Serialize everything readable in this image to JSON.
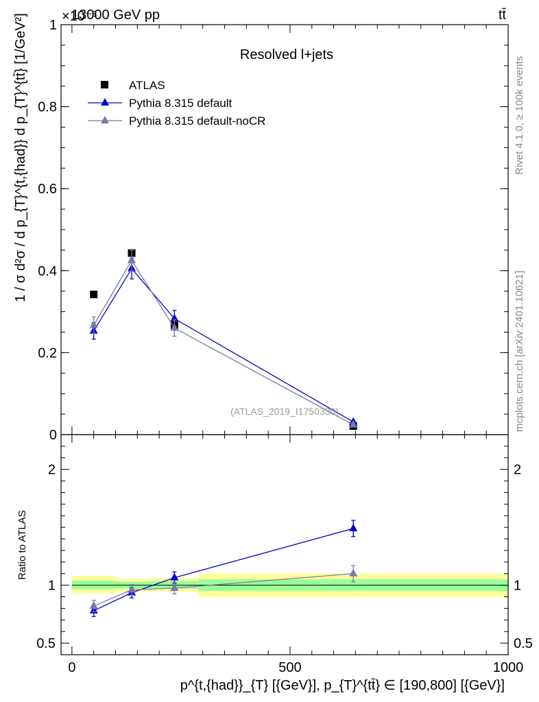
{
  "header": {
    "beam_label": "13000 GeV pp",
    "exponent_label": "×10⁻³",
    "process_label": "tt̄"
  },
  "side": {
    "rivet": "Rivet 4.1.0, ≥ 100k events",
    "mcplots": "mcplots.cern.ch [arXiv:2401.10621]"
  },
  "chart_data": [
    {
      "type": "scatter",
      "title": "Resolved l+jets",
      "watermark": "(ATLAS_2019_I1750330)",
      "ylabel": "1 / σ d²σ / d p_{T}^{t,{had}} d p_{T}^{tt̄} [1/GeV²]",
      "xlim": [
        -25,
        1000
      ],
      "ylim": [
        0,
        1.0
      ],
      "yticks": [
        {
          "v": 0,
          "label": "0"
        },
        {
          "v": 0.2,
          "label": "0.2"
        },
        {
          "v": 0.4,
          "label": "0.4"
        },
        {
          "v": 0.6,
          "label": "0.6"
        },
        {
          "v": 0.8,
          "label": "0.8"
        },
        {
          "v": 1.0,
          "label": "1"
        }
      ],
      "legend": [
        "ATLAS",
        "Pythia 8.315 default",
        "Pythia 8.315 default-noCR"
      ],
      "series": [
        {
          "name": "ATLAS",
          "color": "#000000",
          "marker": "square",
          "points": [
            {
              "x": 50,
              "y": 0.342,
              "err": 0.0
            },
            {
              "x": 137,
              "y": 0.443,
              "err": 0.0
            },
            {
              "x": 235,
              "y": 0.267,
              "err": 0.0
            },
            {
              "x": 645,
              "y": 0.021,
              "err": 0.0
            }
          ]
        },
        {
          "name": "Pythia 8.315 default",
          "color": "#0000cc",
          "marker": "triangle",
          "points": [
            {
              "x": 50,
              "y": 0.253,
              "err": 0.02
            },
            {
              "x": 137,
              "y": 0.405,
              "err": 0.025
            },
            {
              "x": 235,
              "y": 0.283,
              "err": 0.02
            },
            {
              "x": 645,
              "y": 0.031,
              "err": 0.002
            }
          ]
        },
        {
          "name": "Pythia 8.315 default-noCR",
          "color": "#7777aa",
          "marker": "triangle",
          "points": [
            {
              "x": 50,
              "y": 0.267,
              "err": 0.02
            },
            {
              "x": 137,
              "y": 0.425,
              "err": 0.025
            },
            {
              "x": 235,
              "y": 0.26,
              "err": 0.02
            },
            {
              "x": 645,
              "y": 0.024,
              "err": 0.002
            }
          ]
        }
      ]
    },
    {
      "type": "scatter",
      "ylabel": "Ratio to ATLAS",
      "xlabel": "p^{t,{had}}_{T} [{GeV}], p_{T}^{tt̄} ∈ [190,800] [{GeV}]",
      "xlim": [
        -25,
        1000
      ],
      "ylim": [
        0.4,
        2.3
      ],
      "xticks": [
        {
          "v": 0,
          "label": "0"
        },
        {
          "v": 500,
          "label": "500"
        },
        {
          "v": 1000,
          "label": "1000"
        }
      ],
      "yticks": [
        {
          "v": 0.5,
          "label": "0.5"
        },
        {
          "v": 1,
          "label": "1"
        },
        {
          "v": 2,
          "label": "2"
        }
      ],
      "bands": [
        {
          "x0": 0,
          "x1": 100,
          "yellow": [
            0.93,
            1.08
          ],
          "green": [
            0.965,
            1.04
          ]
        },
        {
          "x0": 100,
          "x1": 175,
          "yellow": [
            0.945,
            1.055
          ],
          "green": [
            0.97,
            1.03
          ]
        },
        {
          "x0": 175,
          "x1": 290,
          "yellow": [
            0.945,
            1.06
          ],
          "green": [
            0.97,
            1.035
          ]
        },
        {
          "x0": 290,
          "x1": 1000,
          "yellow": [
            0.9,
            1.1
          ],
          "green": [
            0.95,
            1.05
          ]
        }
      ],
      "series": [
        {
          "name": "Pythia 8.315 default",
          "color": "#0000cc",
          "points": [
            {
              "x": 50,
              "y": 0.78,
              "err": 0.05
            },
            {
              "x": 137,
              "y": 0.935,
              "err": 0.045
            },
            {
              "x": 235,
              "y": 1.065,
              "err": 0.05
            },
            {
              "x": 645,
              "y": 1.49,
              "err": 0.07
            }
          ]
        },
        {
          "name": "Pythia 8.315 default-noCR",
          "color": "#7777aa",
          "points": [
            {
              "x": 50,
              "y": 0.82,
              "err": 0.05
            },
            {
              "x": 137,
              "y": 0.96,
              "err": 0.045
            },
            {
              "x": 235,
              "y": 0.975,
              "err": 0.05
            },
            {
              "x": 645,
              "y": 1.1,
              "err": 0.07
            }
          ]
        }
      ]
    }
  ]
}
